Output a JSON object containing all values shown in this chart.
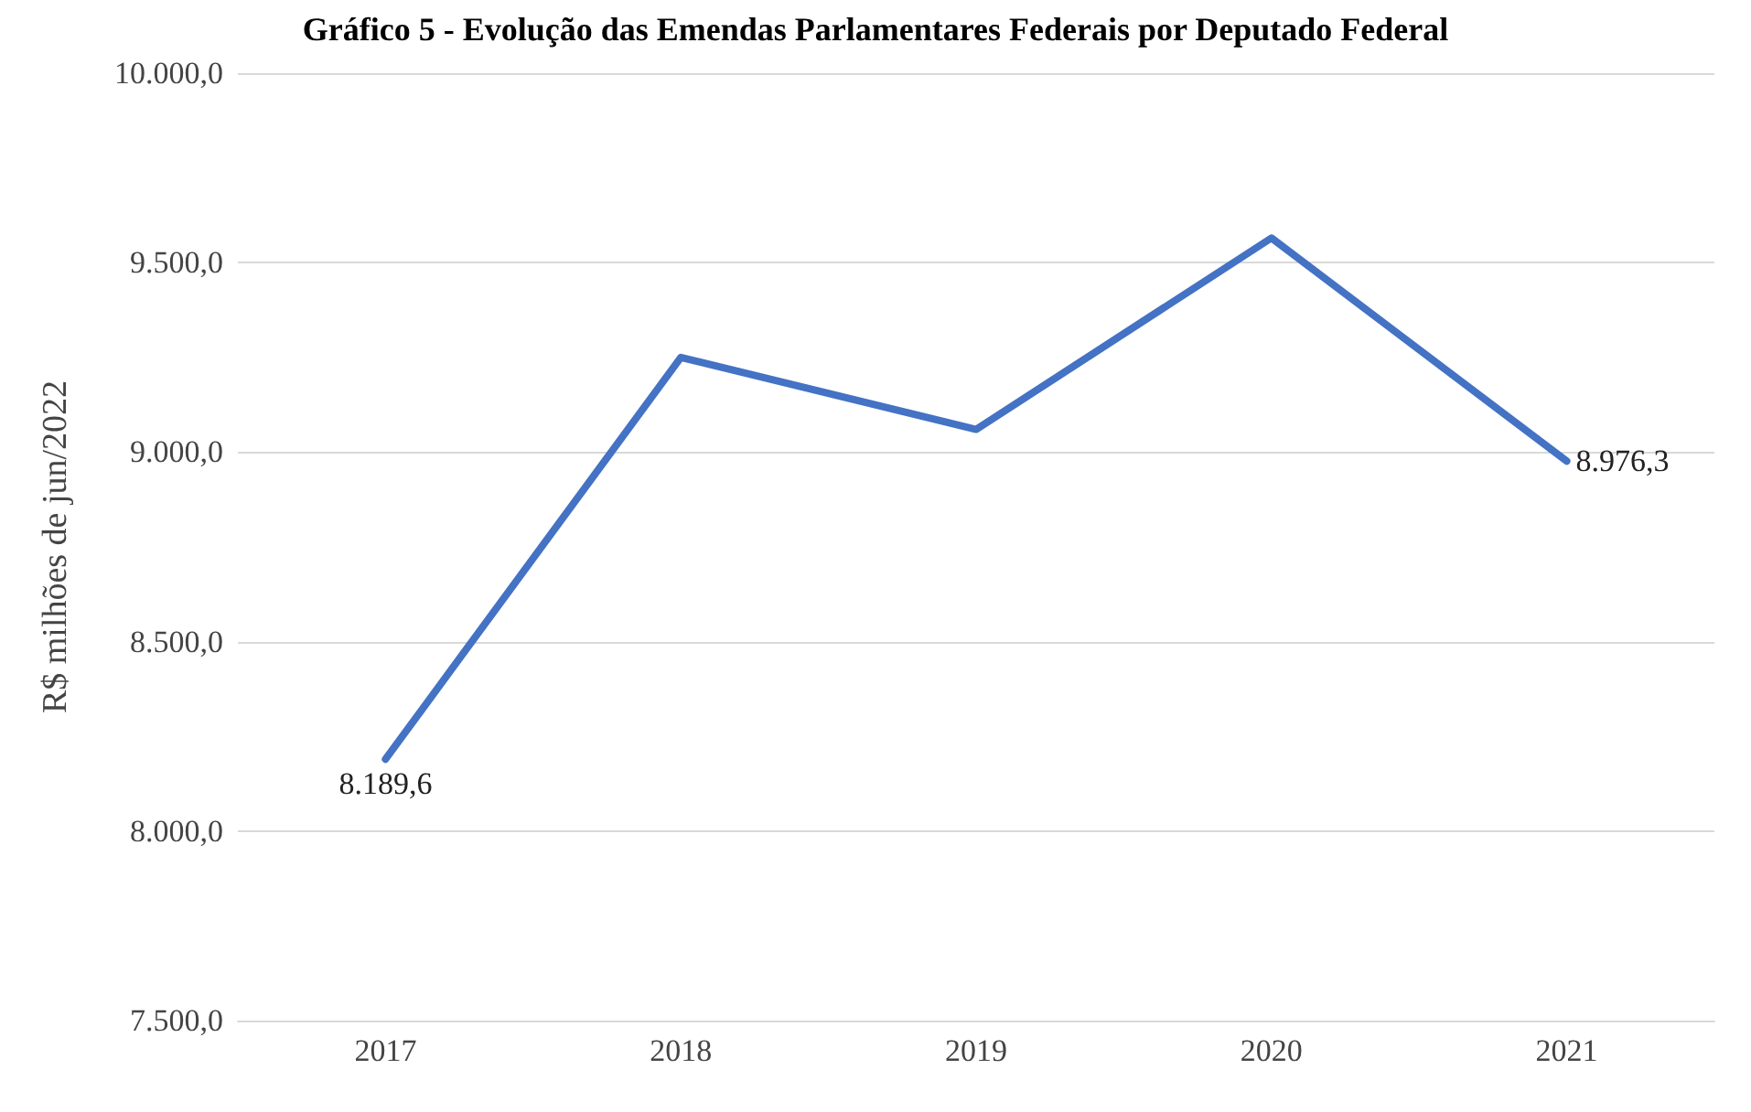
{
  "chart_data": {
    "type": "line",
    "title": "Gráfico 5 - Evolução das Emendas Parlamentares Federais por Deputado Federal",
    "ylabel": "R$ milhões de jun/2022",
    "categories": [
      "2017",
      "2018",
      "2019",
      "2020",
      "2021"
    ],
    "series": [
      {
        "color": "#4472c4",
        "values": [
          8189.6,
          9250,
          9060,
          9565,
          8976.3
        ],
        "value_labels": [
          "8.189,6",
          null,
          null,
          null,
          "8.976,3"
        ]
      }
    ],
    "ylim": [
      7500,
      10000
    ],
    "yticks": [
      {
        "value": 7500,
        "label": "7.500,0"
      },
      {
        "value": 8000,
        "label": "8.000,0"
      },
      {
        "value": 8500,
        "label": "8.500,0"
      },
      {
        "value": 9000,
        "label": "9.000,0"
      },
      {
        "value": 9500,
        "label": "9.500,0"
      },
      {
        "value": 10000,
        "label": "10.000,0"
      }
    ],
    "grid": "y",
    "marker": "none",
    "line_style": "solid"
  }
}
